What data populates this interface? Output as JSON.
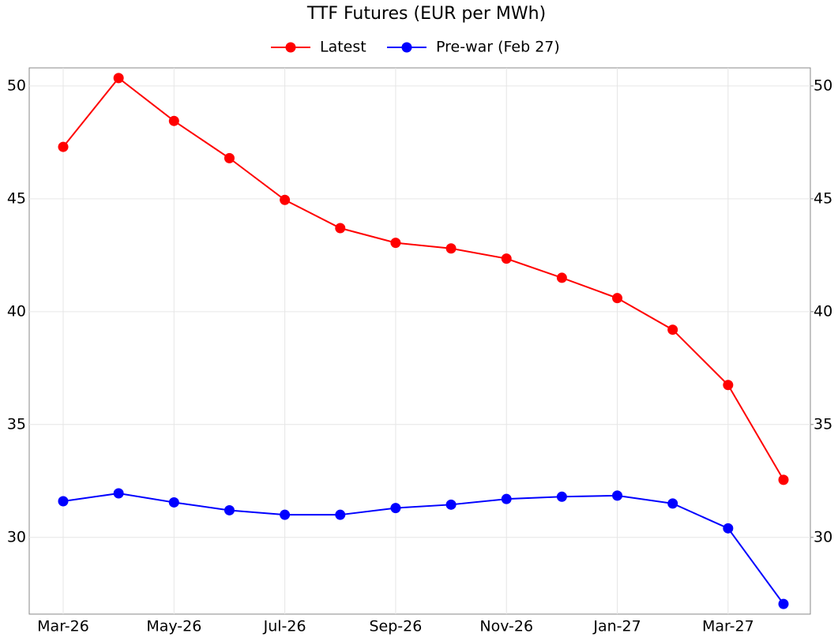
{
  "chart_data": {
    "type": "line",
    "title": "TTF Futures (EUR per MWh)",
    "categories": [
      "Mar-26",
      null,
      "May-26",
      null,
      "Jul-26",
      null,
      "Sep-26",
      null,
      "Nov-26",
      null,
      "Jan-27",
      null,
      "Mar-27",
      null
    ],
    "series": [
      {
        "name": "Latest",
        "color": "#ff0000",
        "values": [
          47.3,
          50.35,
          48.45,
          46.8,
          44.95,
          43.7,
          43.05,
          42.8,
          42.35,
          41.5,
          40.6,
          39.2,
          36.75,
          32.55
        ]
      },
      {
        "name": "Pre-war (Feb 27)",
        "color": "#0000ff",
        "values": [
          31.6,
          31.95,
          31.55,
          31.2,
          31.0,
          31.0,
          31.3,
          31.45,
          31.7,
          31.8,
          31.85,
          31.5,
          30.4,
          27.05
        ]
      }
    ],
    "ylim": [
      26.6,
      50.8
    ],
    "yticks": [
      30,
      35,
      40,
      45,
      50
    ],
    "y2lim": [
      26.6,
      50.8
    ],
    "y2ticks": [
      30,
      35,
      40,
      45,
      50
    ],
    "grid": true,
    "legend": "top"
  }
}
